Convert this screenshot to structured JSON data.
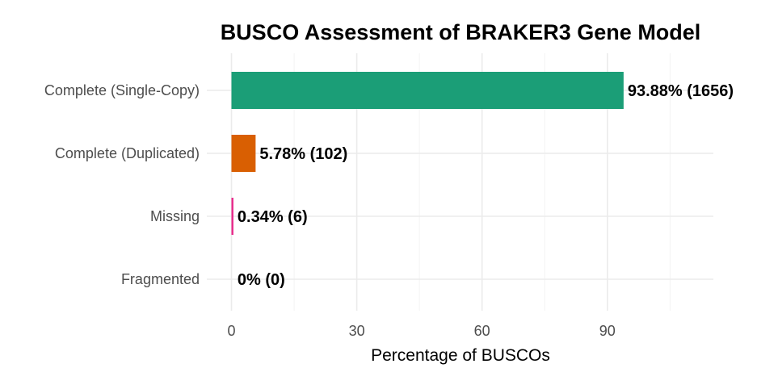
{
  "chart_data": {
    "type": "bar",
    "orientation": "horizontal",
    "title": "BUSCO Assessment of BRAKER3 Gene Model",
    "xlabel": "Percentage of BUSCOs",
    "ylabel": "",
    "xlim": [
      0,
      115
    ],
    "x_ticks": [
      0,
      30,
      60,
      90
    ],
    "grid": true,
    "legend": "none",
    "categories": [
      "Complete (Single-Copy)",
      "Complete (Duplicated)",
      "Missing",
      "Fragmented"
    ],
    "values": [
      93.88,
      5.78,
      0.34,
      0
    ],
    "data_labels": [
      "93.88% (1656)",
      "5.78% (102)",
      "0.34% (6)",
      "0% (0)"
    ],
    "colors": [
      "#1b9e77",
      "#d95f02",
      "#e7298a",
      "#7570b3"
    ]
  }
}
